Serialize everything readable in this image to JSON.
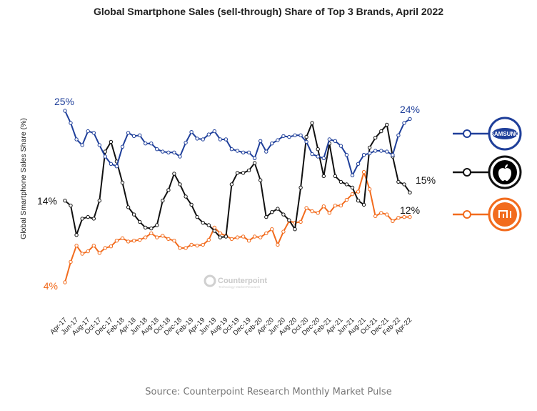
{
  "title": "Global Smartphone Sales (sell-through) Share of Top 3 Brands, April 2022",
  "source": "Source: Counterpoint Research Monthly Market Pulse",
  "watermark": {
    "name": "Counterpoint",
    "tagline": "Technology Market Research"
  },
  "chart_data": {
    "type": "line",
    "title": "Global Smartphone Sales (sell-through) Share of Top 3 Brands, April 2022",
    "ylabel": "Global Smartphone Sales Share (%)",
    "xlabel": "",
    "ylim": [
      0,
      30
    ],
    "grid": false,
    "legend": "right",
    "x": [
      "Apr-17",
      "May-17",
      "Jun-17",
      "Jul-17",
      "Aug-17",
      "Sep-17",
      "Oct-17",
      "Nov-17",
      "Dec-17",
      "Jan-18",
      "Feb-18",
      "Mar-18",
      "Apr-18",
      "May-18",
      "Jun-18",
      "Jul-18",
      "Aug-18",
      "Sep-18",
      "Oct-18",
      "Nov-18",
      "Dec-18",
      "Jan-19",
      "Feb-19",
      "Mar-19",
      "Apr-19",
      "May-19",
      "Jun-19",
      "Jul-19",
      "Aug-19",
      "Sep-19",
      "Oct-19",
      "Nov-19",
      "Dec-19",
      "Jan-20",
      "Feb-20",
      "Mar-20",
      "Apr-20",
      "May-20",
      "Jun-20",
      "Jul-20",
      "Aug-20",
      "Sep-20",
      "Oct-20",
      "Nov-20",
      "Dec-20",
      "Jan-21",
      "Feb-21",
      "Mar-21",
      "Apr-21",
      "May-21",
      "Jun-21",
      "Jul-21",
      "Aug-21",
      "Sep-21",
      "Oct-21",
      "Nov-21",
      "Dec-21",
      "Jan-22",
      "Feb-22",
      "Mar-22",
      "Apr-22"
    ],
    "tick_labels": [
      "Apr-17",
      "Jun-17",
      "Aug-17",
      "Oct-17",
      "Dec-17",
      "Feb-18",
      "Apr-18",
      "Jun-18",
      "Aug-18",
      "Oct-18",
      "Dec-18",
      "Feb-19",
      "Apr-19",
      "Jun-19",
      "Aug-19",
      "Oct-19",
      "Dec-19",
      "Feb-20",
      "Apr-20",
      "Jun-20",
      "Aug-20",
      "Oct-20",
      "Dec-20",
      "Feb-21",
      "Apr-21",
      "Jun-21",
      "Aug-21",
      "Oct-21",
      "Dec-21",
      "Feb-22",
      "Apr-22"
    ],
    "series": [
      {
        "name": "SAMSUNG",
        "color": "#1f3f9a",
        "start_label": "25%",
        "end_label": "24%",
        "values": [
          25,
          23.5,
          21.5,
          20.8,
          22.5,
          22.3,
          20.8,
          19.4,
          18.5,
          18.2,
          20.6,
          22.3,
          21.9,
          22.0,
          21.0,
          21.0,
          20.3,
          20.0,
          19.9,
          19.9,
          19.4,
          21.1,
          22.4,
          21.6,
          21.5,
          22.1,
          22.5,
          21.5,
          21.5,
          20.3,
          20.1,
          19.9,
          19.9,
          19.2,
          21.3,
          20.0,
          21.0,
          21.4,
          21.9,
          21.8,
          22.0,
          22.0,
          21.2,
          19.7,
          19.4,
          19.2,
          21.5,
          21.3,
          20.7,
          19.6,
          17.1,
          18.5,
          19.6,
          19.8,
          20.1,
          20.1,
          20.0,
          19.6,
          22.0,
          23.5,
          24.0
        ]
      },
      {
        "name": "Apple",
        "color": "#111111",
        "start_label": "14%",
        "end_label": "15%",
        "values": [
          14,
          13.4,
          9.8,
          11.8,
          12.0,
          11.8,
          14.0,
          20.0,
          21.2,
          18.8,
          16.2,
          13.2,
          12.3,
          11.4,
          10.7,
          10.6,
          11.0,
          14.0,
          15.3,
          17.3,
          16.0,
          14.5,
          13.5,
          12.0,
          11.3,
          11.0,
          10.3,
          9.5,
          9.6,
          16.0,
          17.4,
          17.4,
          17.7,
          18.6,
          16.5,
          12.0,
          12.6,
          13.0,
          12.3,
          11.6,
          10.5,
          15.6,
          21.8,
          23.5,
          20.3,
          17.0,
          21.0,
          17.0,
          16.3,
          16.0,
          15.6,
          14.0,
          13.5,
          20.5,
          21.7,
          22.5,
          23.3,
          19.4,
          16.3,
          16.0,
          15.0
        ]
      },
      {
        "name": "Xiaomi",
        "color": "#f26b1d",
        "start_label": "4%",
        "end_label": "12%",
        "values": [
          4,
          6.5,
          8.5,
          7.5,
          7.8,
          8.5,
          7.6,
          8.2,
          8.4,
          9.1,
          9.4,
          9.0,
          9.1,
          9.2,
          9.5,
          10.0,
          9.5,
          9.7,
          9.3,
          9.1,
          8.2,
          8.2,
          8.6,
          8.5,
          8.6,
          9.2,
          10.7,
          10.0,
          9.7,
          9.3,
          9.5,
          9.6,
          9.1,
          9.6,
          9.5,
          10.0,
          10.5,
          8.6,
          10.2,
          11.5,
          11.3,
          11.4,
          13.1,
          12.7,
          12.5,
          13.3,
          12.5,
          13.4,
          13.4,
          14.1,
          14.8,
          15.1,
          17.5,
          15.4,
          12.1,
          12.5,
          12.3,
          11.5,
          11.9,
          12.0,
          12.0
        ]
      }
    ]
  }
}
